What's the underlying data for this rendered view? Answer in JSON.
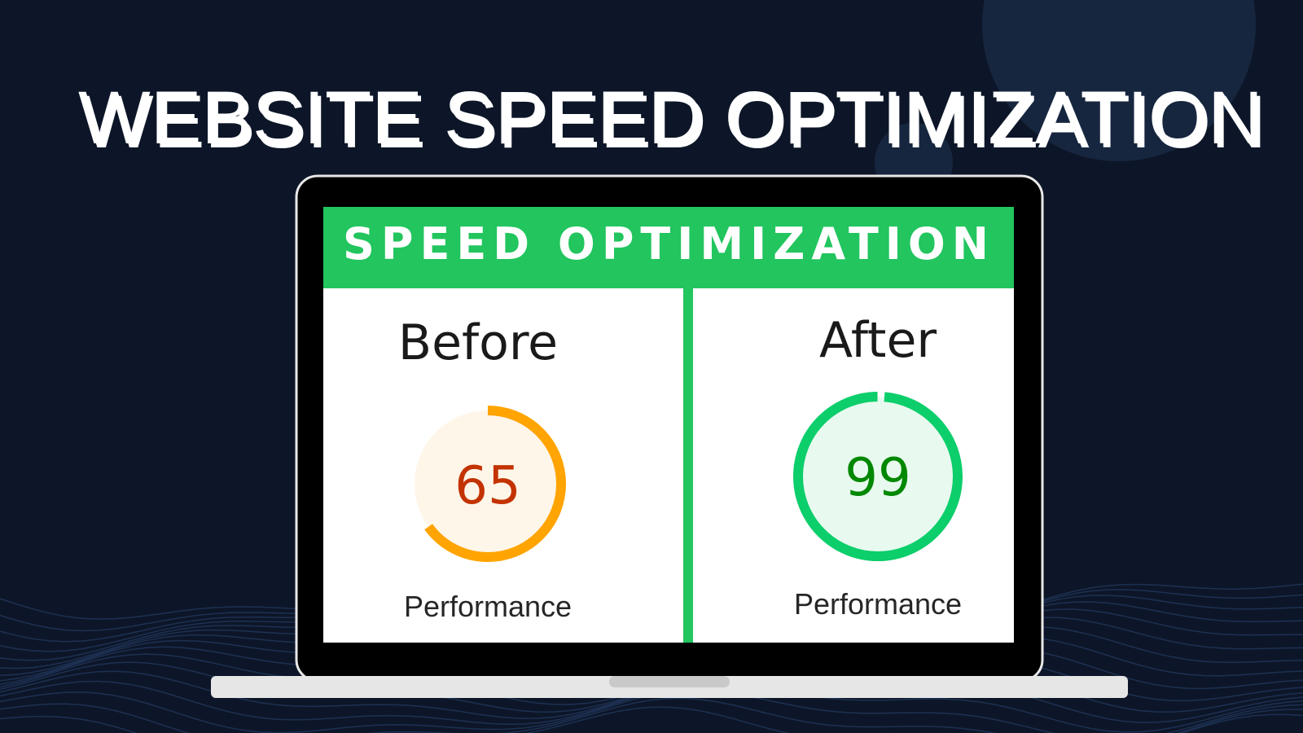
{
  "title": "WEBSITE SPEED OPTIMIZATION",
  "banner": "SPEED OPTIMIZATION",
  "panels": [
    {
      "label": "Before",
      "score": 65,
      "caption": "Performance"
    },
    {
      "label": "After",
      "score": 99,
      "caption": "Performance"
    }
  ]
}
